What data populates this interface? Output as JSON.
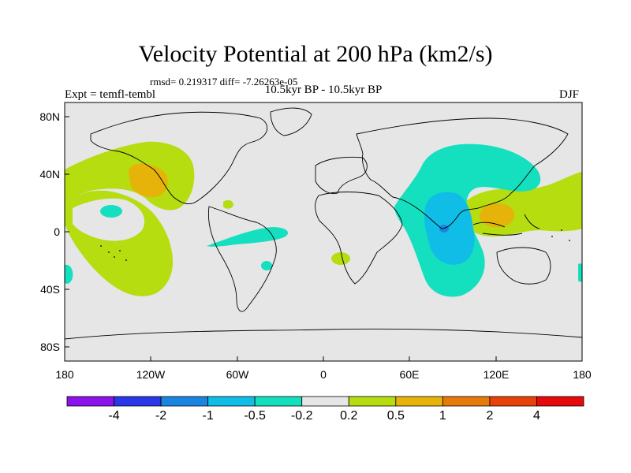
{
  "figure": {
    "title": "Velocity Potential at 200 hPa (km2/s)",
    "stats": "rmsd= 0.219317 diff= -7.26263e-05",
    "subtitle": "10.5kyr BP - 10.5kyr BP",
    "experiment": "Expt = temfl-tembl",
    "season": "DJF"
  },
  "axes": {
    "y_ticks": [
      "80N",
      "40N",
      "0",
      "40S",
      "80S"
    ],
    "x_ticks": [
      "180",
      "120W",
      "60W",
      "0",
      "60E",
      "120E",
      "180"
    ]
  },
  "colorbar": {
    "labels": [
      "-4",
      "-2",
      "-1",
      "-0.5",
      "-0.2",
      "0.2",
      "0.5",
      "1",
      "2",
      "4"
    ],
    "colors": [
      "#8a12ea",
      "#2b36e6",
      "#1a85e0",
      "#10bde6",
      "#14e0c0",
      "#e6e6e6",
      "#b5dd10",
      "#e6b30a",
      "#e67a0a",
      "#e6420a",
      "#e60a0a"
    ]
  },
  "map": {
    "background_color": "#e6e6e6",
    "longitude_range": [
      -180,
      180
    ],
    "latitude_range": [
      -90,
      90
    ],
    "anomaly_regions": [
      {
        "name": "north-pacific-positive",
        "level": "0.2 to 0.5"
      },
      {
        "name": "north-america-maximum",
        "level": "0.5 to 1"
      },
      {
        "name": "south-pacific-positive",
        "level": "0.2 to 0.5"
      },
      {
        "name": "indian-ocean-negative",
        "level": "-0.5 to -0.2"
      },
      {
        "name": "indian-ocean-core",
        "level": "-1 to -0.5"
      },
      {
        "name": "maritime-continent-maximum",
        "level": "0.5 to 1"
      },
      {
        "name": "tropical-atlantic-negative",
        "level": "-0.5 to -0.2"
      }
    ]
  }
}
